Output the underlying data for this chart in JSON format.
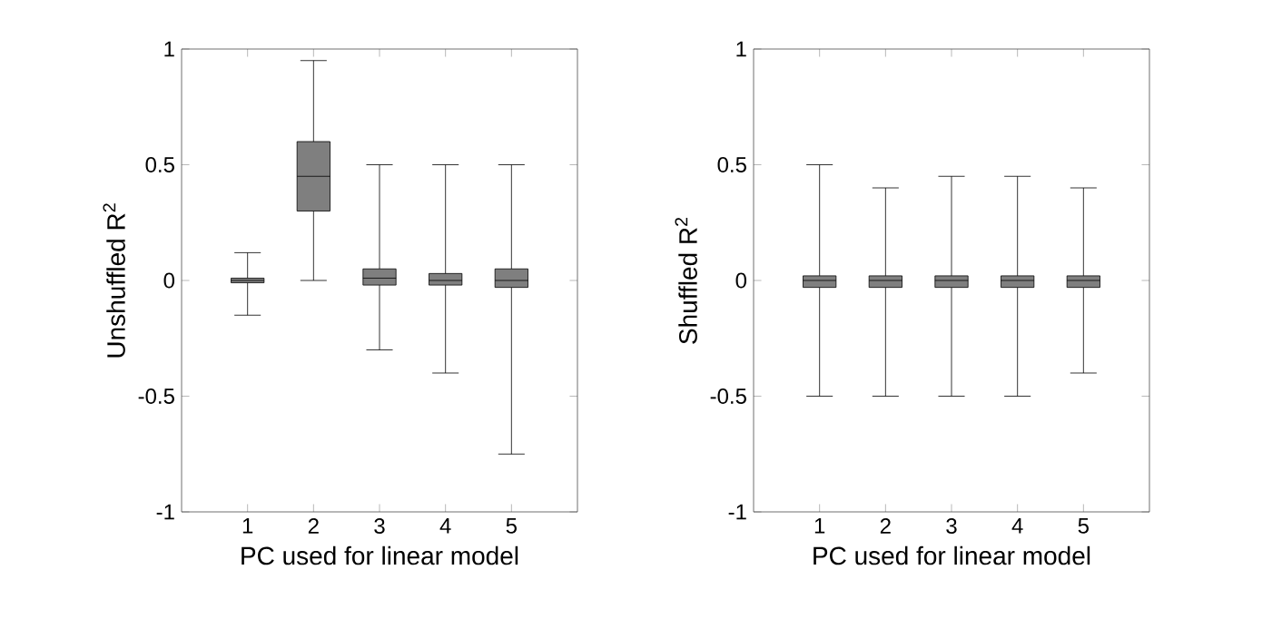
{
  "chart_data": [
    {
      "type": "box",
      "xlabel": "PC used for linear model",
      "ylabel": "Unshuffled R$^{2}$",
      "categories": [
        "1",
        "2",
        "3",
        "4",
        "5"
      ],
      "ylim": [
        -1,
        1
      ],
      "yticks": [
        -1,
        -0.5,
        0,
        0.5,
        1
      ],
      "grid": false,
      "series": [
        {
          "color": "#7f7f7f",
          "boxes": [
            {
              "low": -0.15,
              "q1": -0.01,
              "median": 0,
              "q3": 0.01,
              "high": 0.12
            },
            {
              "low": 0.0,
              "q1": 0.3,
              "median": 0.45,
              "q3": 0.6,
              "high": 0.95
            },
            {
              "low": -0.3,
              "q1": -0.02,
              "median": 0.01,
              "q3": 0.05,
              "high": 0.5
            },
            {
              "low": -0.4,
              "q1": -0.02,
              "median": 0,
              "q3": 0.03,
              "high": 0.5
            },
            {
              "low": -0.75,
              "q1": -0.03,
              "median": 0,
              "q3": 0.05,
              "high": 0.5
            }
          ]
        }
      ]
    },
    {
      "type": "box",
      "xlabel": "PC used for linear model",
      "ylabel": "Shuffled R$^{2}$",
      "categories": [
        "1",
        "2",
        "3",
        "4",
        "5"
      ],
      "ylim": [
        -1,
        1
      ],
      "yticks": [
        -1,
        -0.5,
        0,
        0.5,
        1
      ],
      "grid": false,
      "series": [
        {
          "color": "#7f7f7f",
          "boxes": [
            {
              "low": -0.5,
              "q1": -0.03,
              "median": 0,
              "q3": 0.02,
              "high": 0.5
            },
            {
              "low": -0.5,
              "q1": -0.03,
              "median": 0,
              "q3": 0.02,
              "high": 0.4
            },
            {
              "low": -0.5,
              "q1": -0.03,
              "median": 0,
              "q3": 0.02,
              "high": 0.45
            },
            {
              "low": -0.5,
              "q1": -0.03,
              "median": 0,
              "q3": 0.02,
              "high": 0.45
            },
            {
              "low": -0.4,
              "q1": -0.03,
              "median": 0,
              "q3": 0.02,
              "high": 0.4
            }
          ]
        }
      ]
    }
  ]
}
